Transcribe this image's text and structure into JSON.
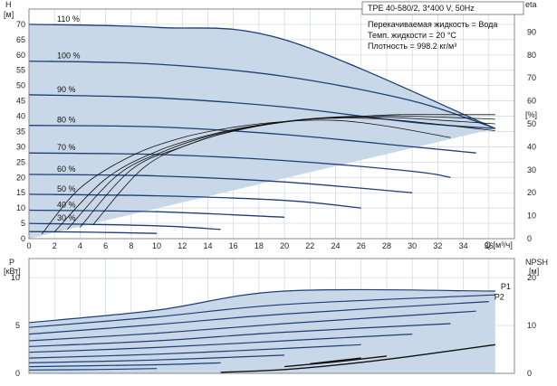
{
  "header": {
    "model": "TPE 40-580/2, 3*400 V, 50Hz",
    "liquid": "Перекачиваемая жидкость = Вода",
    "temp": "Темп. жидкости = 20 °C",
    "density": "Плотность = 998.2 кг/м³"
  },
  "colors": {
    "curve": "#1c3f78",
    "fill": "#c9d8e8",
    "grid": "#cfd6de",
    "eff": "#111111"
  },
  "chart_data": [
    {
      "type": "line",
      "title": "",
      "xlabel": "Q [м³/ч]",
      "ylabel_left": "H [м]",
      "ylabel_right": "eta [%]",
      "xlim": [
        0,
        38
      ],
      "ylim": [
        0,
        75
      ],
      "ylim_right": [
        0,
        100
      ],
      "xticks": [
        0,
        2,
        4,
        6,
        8,
        10,
        12,
        14,
        16,
        18,
        20,
        22,
        24,
        26,
        28,
        30,
        32,
        34,
        36
      ],
      "yticks": [
        0,
        5,
        10,
        15,
        20,
        25,
        30,
        35,
        40,
        45,
        50,
        55,
        60,
        65,
        70
      ],
      "yticks_right": [
        0,
        10,
        20,
        30,
        40,
        50,
        60,
        70,
        80,
        90
      ],
      "grid": true,
      "speed_curves": [
        {
          "label": "110 %",
          "points": [
            [
              0,
              70
            ],
            [
              10,
              69
            ],
            [
              20,
              65
            ],
            [
              36.5,
              36
            ]
          ]
        },
        {
          "label": "100 %",
          "points": [
            [
              0,
              58
            ],
            [
              10,
              57
            ],
            [
              20,
              53
            ],
            [
              30,
              45
            ],
            [
              36.5,
              36
            ]
          ]
        },
        {
          "label": "90 %",
          "points": [
            [
              0,
              47
            ],
            [
              10,
              46
            ],
            [
              20,
              43
            ],
            [
              30,
              38
            ],
            [
              36.5,
              36
            ]
          ]
        },
        {
          "label": "80 %",
          "points": [
            [
              0,
              37
            ],
            [
              10,
              36.5
            ],
            [
              20,
              34
            ],
            [
              30,
              30
            ],
            [
              35,
              28
            ]
          ]
        },
        {
          "label": "70 %",
          "points": [
            [
              0,
              28
            ],
            [
              10,
              27.5
            ],
            [
              20,
              25.5
            ],
            [
              30,
              22
            ],
            [
              33,
              20
            ]
          ]
        },
        {
          "label": "60 %",
          "points": [
            [
              0,
              21
            ],
            [
              10,
              20.5
            ],
            [
              20,
              18.5
            ],
            [
              30,
              15
            ]
          ]
        },
        {
          "label": "50 %",
          "points": [
            [
              0,
              14.5
            ],
            [
              10,
              14
            ],
            [
              20,
              12.5
            ],
            [
              26,
              10
            ]
          ]
        },
        {
          "label": "40 %",
          "points": [
            [
              0,
              9.3
            ],
            [
              10,
              8.8
            ],
            [
              20,
              7
            ]
          ]
        },
        {
          "label": "30 %",
          "points": [
            [
              0,
              5
            ],
            [
              10,
              4.2
            ],
            [
              15,
              3
            ]
          ]
        },
        {
          "label": "",
          "points": [
            [
              0,
              2.3
            ],
            [
              5,
              2.1
            ],
            [
              10,
              1.7
            ]
          ]
        }
      ],
      "efficiency_curves": [
        {
          "points": [
            [
              1,
              2
            ],
            [
              4,
              22
            ],
            [
              8,
              36
            ],
            [
              12,
              44
            ],
            [
              16,
              48.5
            ],
            [
              20,
              51
            ],
            [
              24,
              51.5
            ],
            [
              28,
              49
            ],
            [
              33,
              44
            ]
          ]
        },
        {
          "points": [
            [
              2,
              3
            ],
            [
              6,
              26
            ],
            [
              10,
              38
            ],
            [
              14,
              45
            ],
            [
              18,
              49.5
            ],
            [
              22,
              52
            ],
            [
              26,
              52.5
            ],
            [
              30,
              51
            ],
            [
              36.5,
              47
            ]
          ]
        },
        {
          "points": [
            [
              3,
              4
            ],
            [
              7,
              28
            ],
            [
              11,
              39
            ],
            [
              15,
              46
            ],
            [
              19,
              50
            ],
            [
              23,
              52.5
            ],
            [
              27,
              53
            ],
            [
              31,
              52
            ],
            [
              36.5,
              50
            ]
          ]
        },
        {
          "points": [
            [
              4,
              5
            ],
            [
              8,
              30
            ],
            [
              12,
              40
            ],
            [
              16,
              47
            ],
            [
              20,
              51
            ],
            [
              24,
              53
            ],
            [
              28,
              53.5
            ],
            [
              32,
              53
            ],
            [
              36.5,
              52
            ]
          ]
        },
        {
          "points": [
            [
              5,
              6
            ],
            [
              9,
              31
            ],
            [
              13,
              42
            ],
            [
              17,
              48
            ],
            [
              21,
              51.5
            ],
            [
              25,
              53
            ],
            [
              29,
              54
            ],
            [
              33,
              54
            ],
            [
              36.5,
              54
            ]
          ]
        }
      ]
    },
    {
      "type": "line",
      "title": "",
      "ylabel_left": "P [кВт]",
      "ylabel_right": "NPSH [м]",
      "xlim": [
        0,
        38
      ],
      "ylim": [
        0,
        12
      ],
      "ylim_right": [
        0,
        24
      ],
      "yticks": [
        0,
        5,
        10
      ],
      "yticks_right": [
        0,
        10,
        20
      ],
      "grid": true,
      "power_curves": [
        {
          "label": "P1",
          "points": [
            [
              0,
              5.3
            ],
            [
              10,
              6.6
            ],
            [
              20,
              8.6
            ],
            [
              36.5,
              8.6
            ]
          ]
        },
        {
          "label": "",
          "points": [
            [
              0,
              4.8
            ],
            [
              10,
              5.9
            ],
            [
              20,
              7.2
            ],
            [
              36.5,
              8.2
            ]
          ]
        },
        {
          "label": "P2",
          "points": [
            [
              0,
              4.1
            ],
            [
              10,
              5.1
            ],
            [
              20,
              6.2
            ],
            [
              36,
              7.5
            ]
          ]
        },
        {
          "label": "",
          "points": [
            [
              0,
              3.4
            ],
            [
              10,
              4.2
            ],
            [
              20,
              5.2
            ],
            [
              35,
              6.5
            ]
          ]
        },
        {
          "label": "",
          "points": [
            [
              0,
              2.8
            ],
            [
              10,
              3.4
            ],
            [
              20,
              4.3
            ],
            [
              33,
              5.2
            ]
          ]
        },
        {
          "label": "",
          "points": [
            [
              0,
              2.2
            ],
            [
              10,
              2.7
            ],
            [
              20,
              3.4
            ],
            [
              30,
              4.1
            ]
          ]
        },
        {
          "label": "",
          "points": [
            [
              0,
              1.6
            ],
            [
              10,
              2.0
            ],
            [
              20,
              2.6
            ],
            [
              26,
              3.0
            ]
          ]
        },
        {
          "label": "",
          "points": [
            [
              0,
              1.1
            ],
            [
              10,
              1.4
            ],
            [
              20,
              1.9
            ]
          ]
        },
        {
          "label": "",
          "points": [
            [
              0,
              0.7
            ],
            [
              10,
              0.9
            ],
            [
              15,
              1.1
            ]
          ]
        },
        {
          "label": "",
          "points": [
            [
              0,
              0.35
            ],
            [
              5,
              0.4
            ],
            [
              10,
              0.5
            ]
          ]
        }
      ],
      "npsh_curves": [
        {
          "points": [
            [
              15,
              0.2
            ],
            [
              20,
              0.8
            ],
            [
              25,
              2.0
            ],
            [
              30,
              3.6
            ],
            [
              36.5,
              6.0
            ]
          ]
        },
        {
          "points": [
            [
              20,
              1.4
            ],
            [
              24,
              2.4
            ],
            [
              28,
              3.6
            ]
          ]
        },
        {
          "points": [
            [
              22,
              2.0
            ],
            [
              26,
              3.2
            ]
          ]
        }
      ]
    }
  ]
}
